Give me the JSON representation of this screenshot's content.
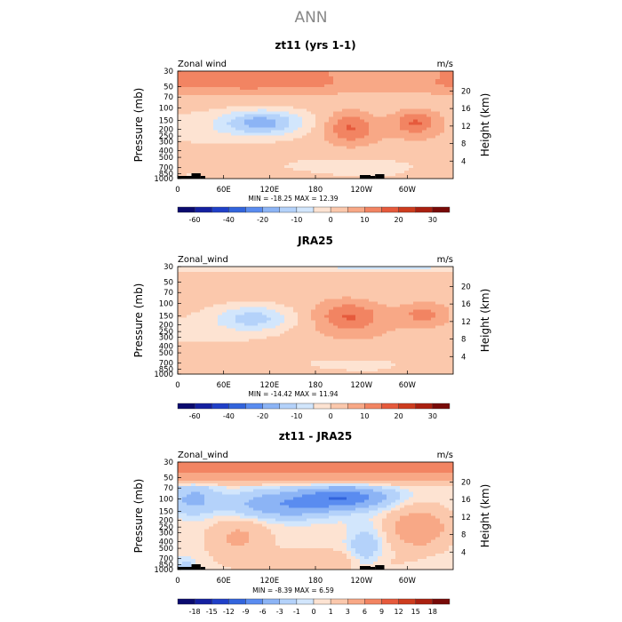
{
  "main_title": "ANN",
  "chart_data": [
    {
      "type": "heatmap",
      "title": "zt11 (yrs 1-1)",
      "variable": "Zonal wind",
      "units": "m/s",
      "ylabel": "Pressure (mb)",
      "y2label": "Height (km)",
      "xticks": [
        "0",
        "60E",
        "120E",
        "180",
        "120W",
        "60W"
      ],
      "yticks": [
        "30",
        "50",
        "70",
        "100",
        "150",
        "200",
        "250",
        "300",
        "400",
        "500",
        "700",
        "850",
        "1000"
      ],
      "height_ticks": [
        "20",
        "16",
        "12",
        "8",
        "4"
      ],
      "stats": "MIN = -18.25  MAX = 12.39",
      "colorbar_levels": [
        -70,
        -60,
        -50,
        -40,
        -30,
        -20,
        -15,
        -10,
        -5,
        0,
        5,
        10,
        15,
        20,
        25,
        30,
        35
      ],
      "colorbar_labels": [
        "-60",
        "-40",
        "-20",
        "-10",
        "0",
        "10",
        "20",
        "30"
      ],
      "colorbar_colors": [
        "#0a0a6e",
        "#1420a0",
        "#2040c8",
        "#3264dc",
        "#5a8cf0",
        "#8cb4f5",
        "#b4d2fa",
        "#d2e6fc",
        "#fde3d2",
        "#fbc8ac",
        "#f8a886",
        "#f28462",
        "#e65a3c",
        "#cd3c1e",
        "#aa2010",
        "#780a08"
      ],
      "value_range": [
        -18.25,
        12.39
      ],
      "topography": true
    },
    {
      "type": "heatmap",
      "title": "JRA25",
      "variable": "Zonal_wind",
      "units": "m/s",
      "ylabel": "Pressure (mb)",
      "y2label": "Height (km)",
      "xticks": [
        "0",
        "60E",
        "120E",
        "180",
        "120W",
        "60W"
      ],
      "yticks": [
        "30",
        "50",
        "70",
        "100",
        "150",
        "200",
        "250",
        "300",
        "400",
        "500",
        "700",
        "850",
        "1000"
      ],
      "height_ticks": [
        "20",
        "16",
        "12",
        "8",
        "4"
      ],
      "stats": "MIN = -14.42  MAX = 11.94",
      "colorbar_levels": [
        -70,
        -60,
        -50,
        -40,
        -30,
        -20,
        -15,
        -10,
        -5,
        0,
        5,
        10,
        15,
        20,
        25,
        30,
        35
      ],
      "colorbar_labels": [
        "-60",
        "-40",
        "-20",
        "-10",
        "0",
        "10",
        "20",
        "30"
      ],
      "colorbar_colors": [
        "#0a0a6e",
        "#1420a0",
        "#2040c8",
        "#3264dc",
        "#5a8cf0",
        "#8cb4f5",
        "#b4d2fa",
        "#d2e6fc",
        "#fde3d2",
        "#fbc8ac",
        "#f8a886",
        "#f28462",
        "#e65a3c",
        "#cd3c1e",
        "#aa2010",
        "#780a08"
      ],
      "value_range": [
        -14.42,
        11.94
      ],
      "topography": false
    },
    {
      "type": "heatmap",
      "title": "zt11 - JRA25",
      "variable": "Zonal_wind",
      "units": "m/s",
      "ylabel": "Pressure (mb)",
      "y2label": "Height (km)",
      "xticks": [
        "0",
        "60E",
        "120E",
        "180",
        "120W",
        "60W"
      ],
      "yticks": [
        "30",
        "50",
        "70",
        "100",
        "150",
        "200",
        "250",
        "300",
        "400",
        "500",
        "700",
        "850",
        "1000"
      ],
      "height_ticks": [
        "20",
        "16",
        "12",
        "8",
        "4"
      ],
      "stats": "MIN = -8.39  MAX = 6.59",
      "colorbar_levels": [
        -21,
        -18,
        -15,
        -12,
        -9,
        -6,
        -3,
        -1,
        0,
        1,
        3,
        6,
        9,
        12,
        15,
        18,
        21
      ],
      "colorbar_labels": [
        "-18",
        "-15",
        "-12",
        "-9",
        "-6",
        "-3",
        "-1",
        "0",
        "1",
        "3",
        "6",
        "9",
        "12",
        "15",
        "18"
      ],
      "colorbar_colors": [
        "#0a0a6e",
        "#1420a0",
        "#2040c8",
        "#3264dc",
        "#5a8cf0",
        "#8cb4f5",
        "#b4d2fa",
        "#d2e6fc",
        "#fde3d2",
        "#fbc8ac",
        "#f8a886",
        "#f28462",
        "#e65a3c",
        "#cd3c1e",
        "#aa2010",
        "#780a08"
      ],
      "value_range": [
        -8.39,
        6.59
      ],
      "topography": true
    }
  ]
}
